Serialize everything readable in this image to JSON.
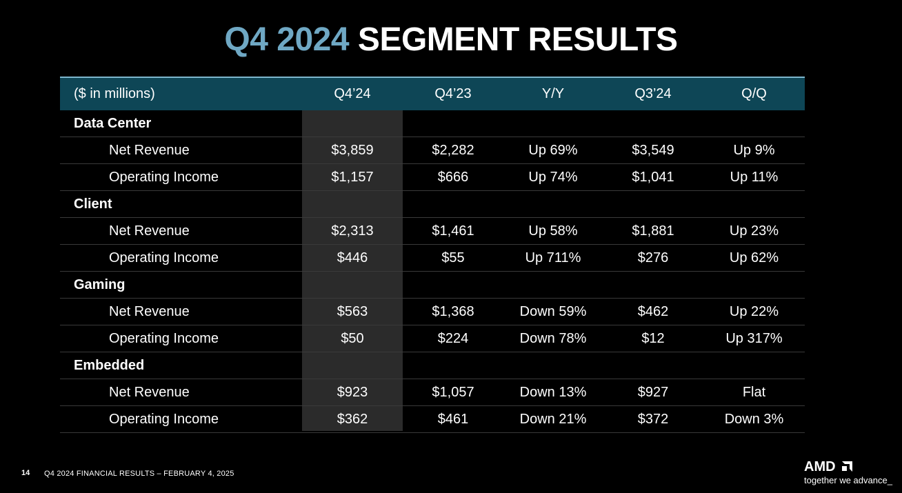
{
  "title": {
    "accent": "Q4 2024",
    "main": "SEGMENT RESULTS"
  },
  "table": {
    "header": {
      "label": "($ in millions)",
      "q424": "Q4’24",
      "q423": "Q4’23",
      "yy": "Y/Y",
      "q324": "Q3’24",
      "qq": "Q/Q"
    },
    "sections": [
      {
        "name": "Data Center",
        "rows": [
          {
            "label": "Net Revenue",
            "q424": "$3,859",
            "q423": "$2,282",
            "yy": "Up 69%",
            "q324": "$3,549",
            "qq": "Up 9%"
          },
          {
            "label": "Operating Income",
            "q424": "$1,157",
            "q423": "$666",
            "yy": "Up 74%",
            "q324": "$1,041",
            "qq": "Up 11%"
          }
        ]
      },
      {
        "name": "Client",
        "rows": [
          {
            "label": "Net Revenue",
            "q424": "$2,313",
            "q423": "$1,461",
            "yy": "Up 58%",
            "q324": "$1,881",
            "qq": "Up 23%"
          },
          {
            "label": "Operating Income",
            "q424": "$446",
            "q423": "$55",
            "yy": "Up 711%",
            "q324": "$276",
            "qq": "Up 62%"
          }
        ]
      },
      {
        "name": "Gaming",
        "rows": [
          {
            "label": "Net Revenue",
            "q424": "$563",
            "q423": "$1,368",
            "yy": "Down 59%",
            "q324": "$462",
            "qq": "Up 22%"
          },
          {
            "label": "Operating Income",
            "q424": "$50",
            "q423": "$224",
            "yy": "Down 78%",
            "q324": "$12",
            "qq": "Up 317%"
          }
        ]
      },
      {
        "name": "Embedded",
        "rows": [
          {
            "label": "Net Revenue",
            "q424": "$923",
            "q423": "$1,057",
            "yy": "Down 13%",
            "q324": "$927",
            "qq": "Flat"
          },
          {
            "label": "Operating Income",
            "q424": "$362",
            "q423": "$461",
            "yy": "Down 21%",
            "q324": "$372",
            "qq": "Down 3%"
          }
        ]
      }
    ]
  },
  "footer": {
    "page": "14",
    "text": "Q4 2024 FINANCIAL RESULTS – FEBRUARY 4, 2025"
  },
  "logo": {
    "word": "AMD",
    "tagline": "together we advance_"
  },
  "colors": {
    "background": "#000000",
    "title_accent": "#6fa8c4",
    "header_bg": "#0e4656",
    "highlight_col": "#2b2b2b"
  }
}
